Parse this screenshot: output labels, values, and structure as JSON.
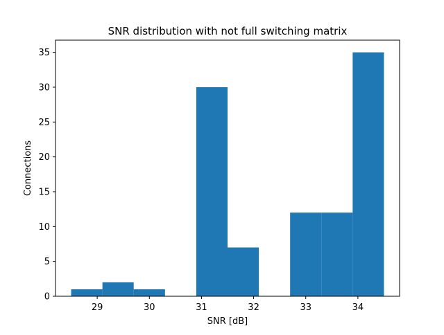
{
  "chart_data": {
    "type": "bar",
    "title": "SNR distribution with not full switching matrix",
    "xlabel": "SNR [dB]",
    "ylabel": "Connections",
    "bins": [
      {
        "start": 28.5,
        "end": 29.1,
        "value": 1
      },
      {
        "start": 29.1,
        "end": 29.7,
        "value": 2
      },
      {
        "start": 29.7,
        "end": 30.3,
        "value": 1
      },
      {
        "start": 30.3,
        "end": 30.9,
        "value": 0
      },
      {
        "start": 30.9,
        "end": 31.5,
        "value": 30
      },
      {
        "start": 31.5,
        "end": 32.1,
        "value": 7
      },
      {
        "start": 32.1,
        "end": 32.7,
        "value": 0
      },
      {
        "start": 32.7,
        "end": 33.3,
        "value": 12
      },
      {
        "start": 33.3,
        "end": 33.9,
        "value": 12
      },
      {
        "start": 33.9,
        "end": 34.5,
        "value": 35
      }
    ],
    "xlim": [
      28.2,
      34.8
    ],
    "ylim": [
      0,
      36.75
    ],
    "xticks": [
      29,
      30,
      31,
      32,
      33,
      34
    ],
    "xtick_labels": [
      "29",
      "30",
      "31",
      "32",
      "33",
      "34"
    ],
    "yticks": [
      0,
      5,
      10,
      15,
      20,
      25,
      30,
      35
    ],
    "ytick_labels": [
      "0",
      "5",
      "10",
      "15",
      "20",
      "25",
      "30",
      "35"
    ],
    "bar_color": "#1f77b4",
    "grid": false,
    "legend": "none"
  }
}
